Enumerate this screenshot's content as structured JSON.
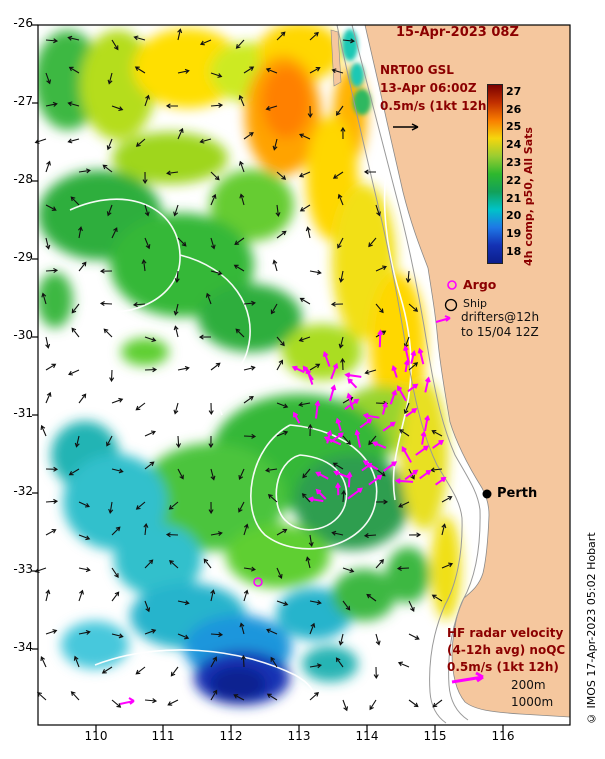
{
  "header": {
    "title": "15-Apr-2023 08Z"
  },
  "info": {
    "product": "NRT00 GSL",
    "datetime": "13-Apr 06:00Z",
    "scale": "0.5m/s (1kt 12h)"
  },
  "colorbar": {
    "label": "4h comp, p50, All Sats",
    "ticks": [
      "27",
      "26",
      "25",
      "24",
      "23",
      "22",
      "21",
      "20",
      "19",
      "18"
    ],
    "colors_top_to_bottom": [
      "#7a0000",
      "#c23000",
      "#f97e00",
      "#f5d60e",
      "#9acd32",
      "#2eb82e",
      "#12a15a",
      "#00c3c8",
      "#1e78e6",
      "#1432b4",
      "#0c1e8c"
    ]
  },
  "legend": {
    "argo": "Argo",
    "ship": "Ship",
    "drifters_line1": "drifters@12h",
    "drifters_line2": "to 15/04 12Z"
  },
  "map_labels": {
    "city": "Perth"
  },
  "hf_radar": {
    "line1": "HF radar velocity",
    "line2": "(4-12h avg) noQC",
    "line3": "0.5m/s (1kt 12h)",
    "isobath_200": "200m",
    "isobath_1000": "1000m"
  },
  "credit": "© IMOS 17-Apr-2023 05:02 Hobart",
  "axes": {
    "x_ticks": [
      "110",
      "111",
      "112",
      "113",
      "114",
      "115",
      "116"
    ],
    "y_ticks": [
      "-26",
      "-27",
      "-28",
      "-29",
      "-30",
      "-31",
      "-32",
      "-33",
      "-34"
    ]
  },
  "colors": {
    "land": "#f5c79e",
    "annotation_accent": "#8b0000",
    "drifter_magenta": "#ff00ff",
    "vector_black": "#000000"
  }
}
